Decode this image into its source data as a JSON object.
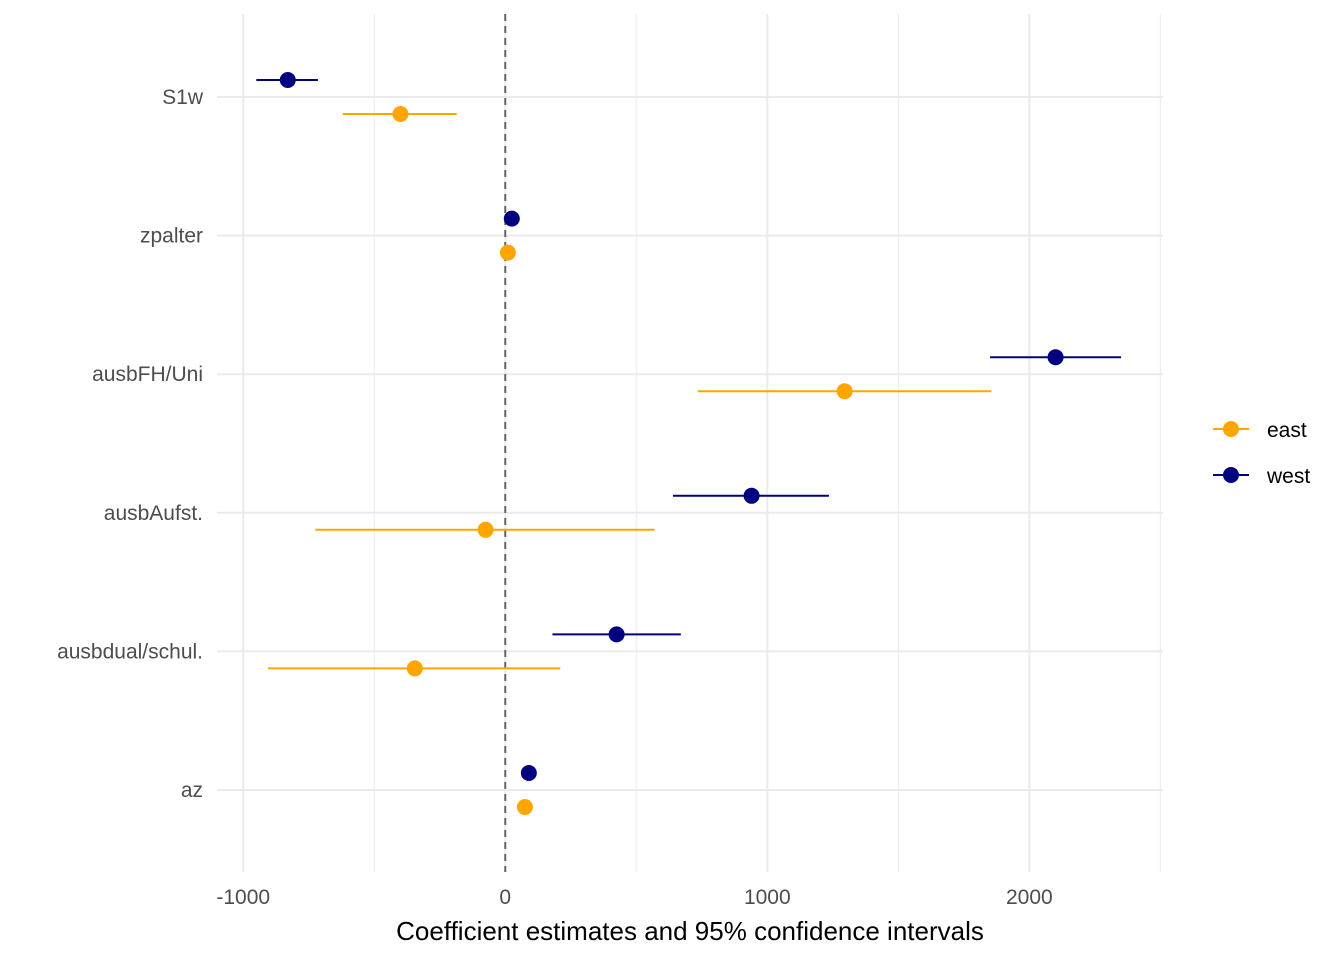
{
  "chart_data": {
    "type": "scatter",
    "title": "",
    "xlabel": "Coefficient estimates and 95% confidence intervals",
    "ylabel": "",
    "xlim": [
      -1100,
      2510
    ],
    "x_ticks": [
      -1000,
      0,
      1000,
      2000
    ],
    "x_tick_labels": [
      "-1000",
      "0",
      "1000",
      "2000"
    ],
    "categories": [
      "S1w",
      "zpalter",
      "ausbFH/Uni",
      "ausbAufst.",
      "ausbdual/schul.",
      "az"
    ],
    "reference_line": 0,
    "grid": true,
    "legend_position": "right",
    "series": [
      {
        "name": "east",
        "color": "#FFA500",
        "estimates": [
          -400,
          10,
          1295,
          -75,
          -345,
          75
        ],
        "ci_low": [
          -620,
          -5,
          735,
          -725,
          -905,
          60
        ],
        "ci_high": [
          -185,
          25,
          1855,
          570,
          210,
          90
        ]
      },
      {
        "name": "west",
        "color": "#000080",
        "estimates": [
          -830,
          25,
          2100,
          940,
          425,
          90
        ],
        "ci_low": [
          -950,
          15,
          1850,
          640,
          180,
          80
        ],
        "ci_high": [
          -715,
          35,
          2350,
          1235,
          670,
          100
        ]
      }
    ]
  }
}
